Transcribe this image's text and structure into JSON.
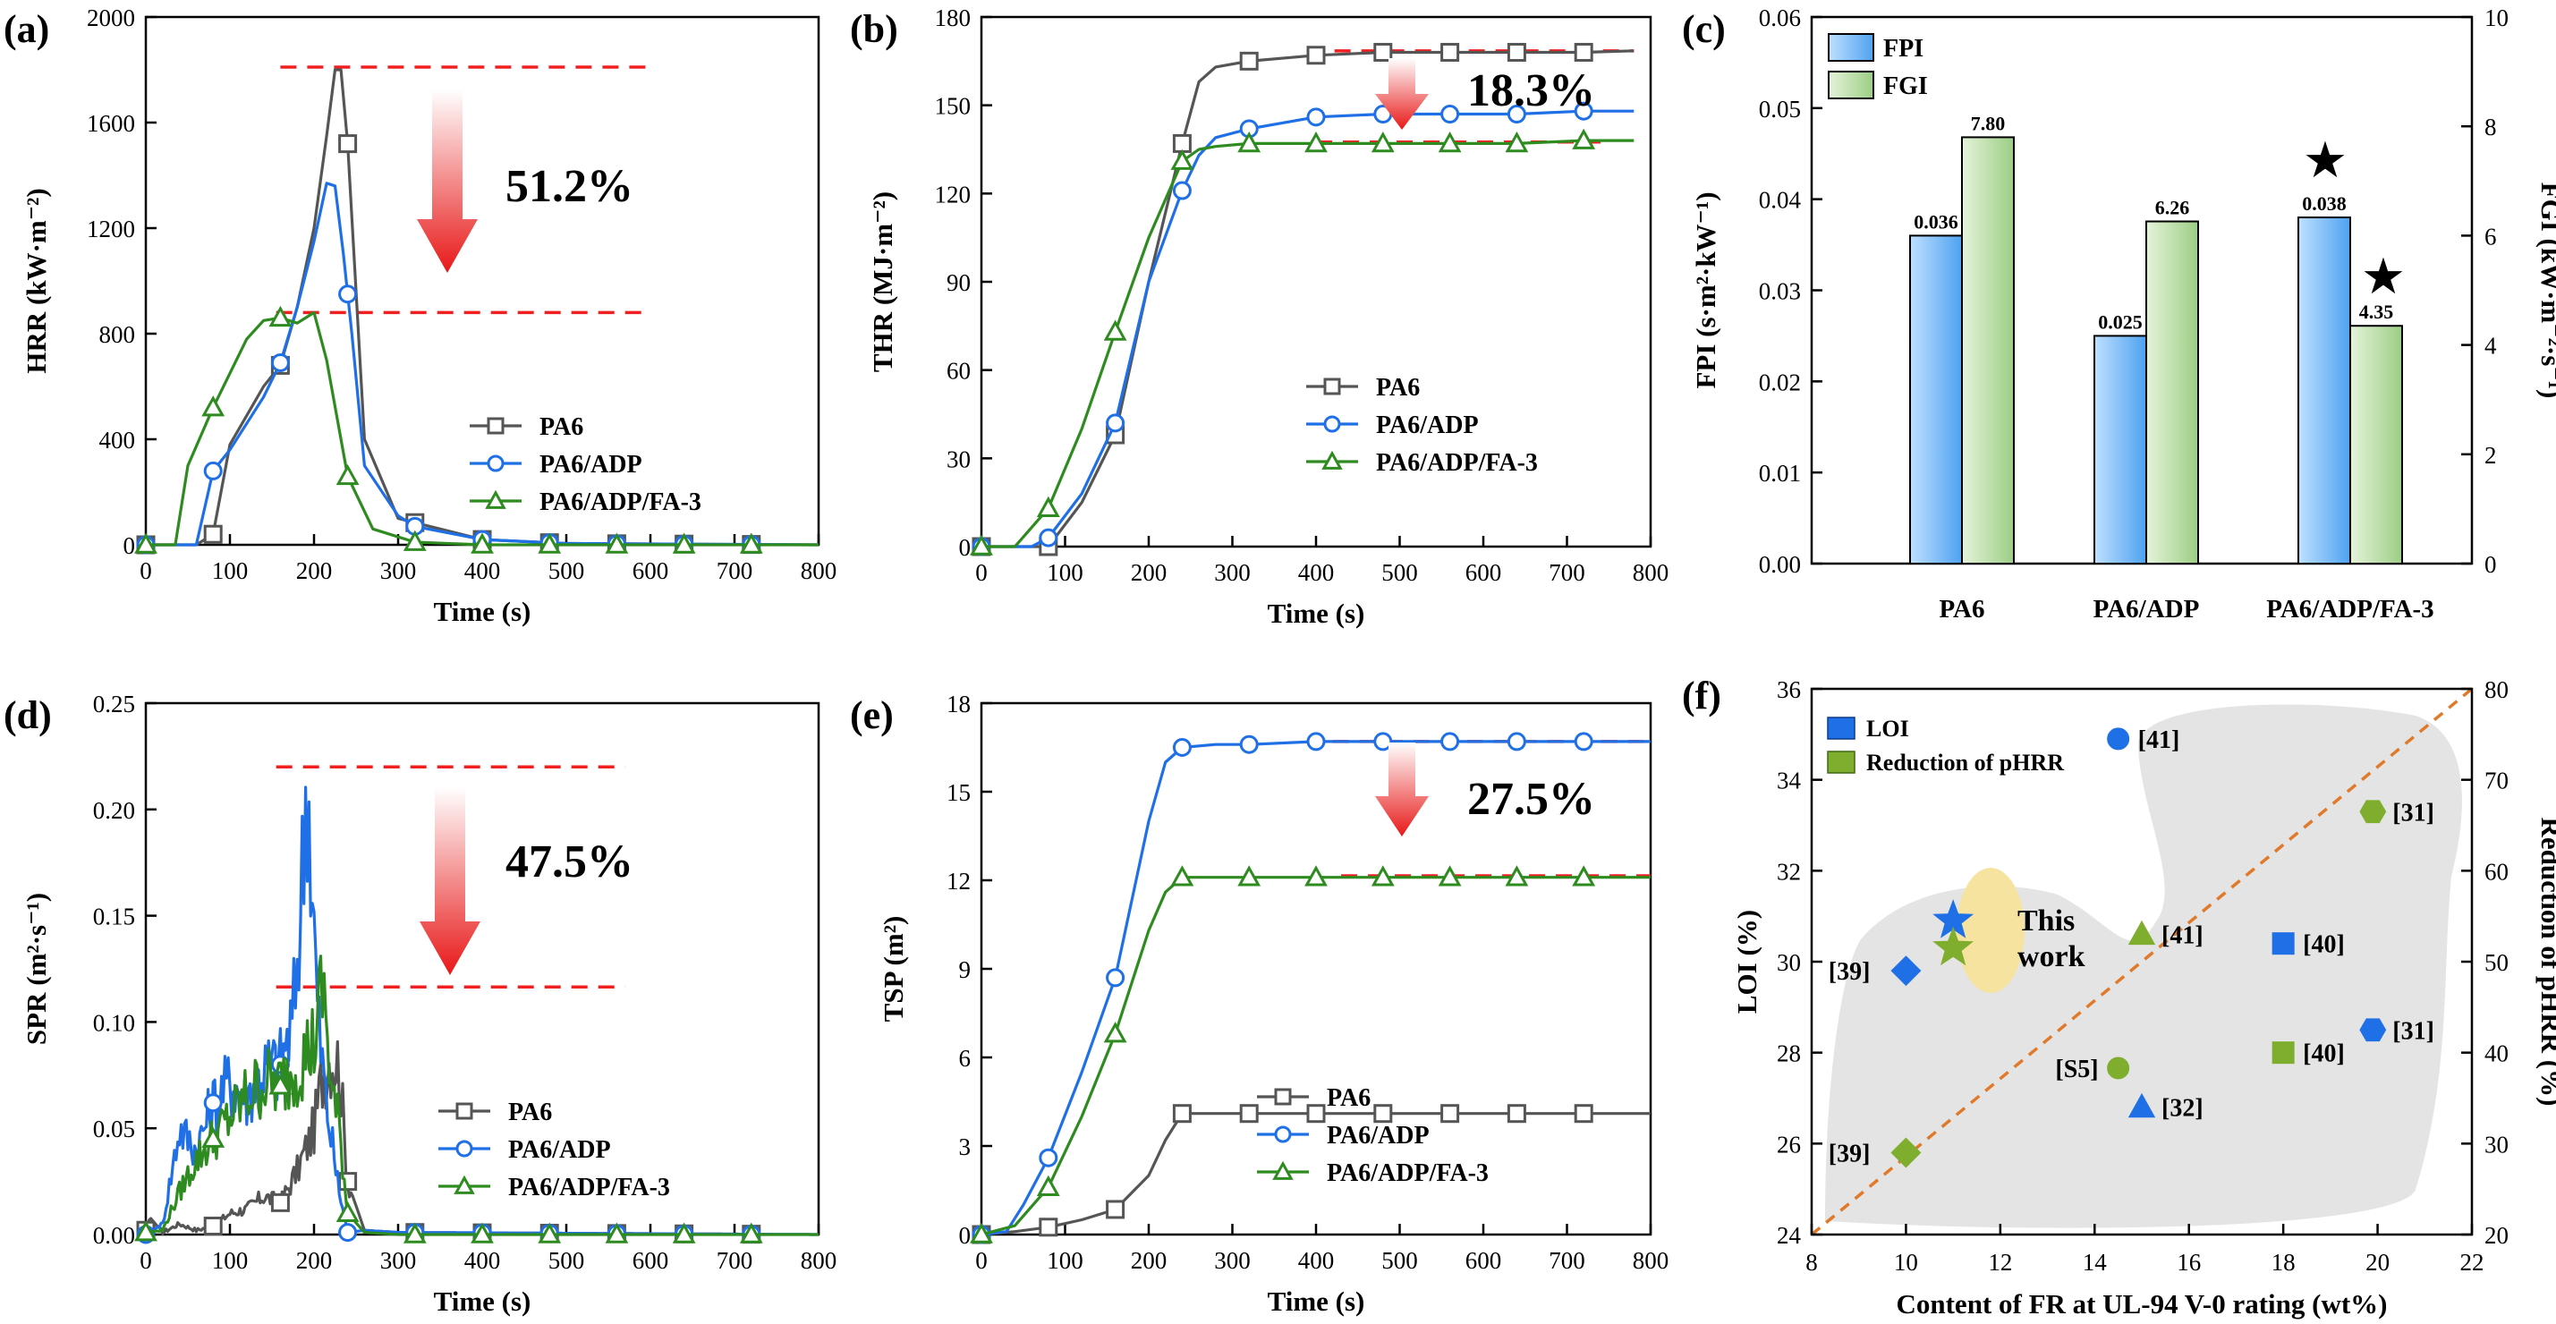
{
  "colors": {
    "pa6": "#555555",
    "adp": "#1f6fe6",
    "fa3": "#2e8b1f",
    "red": "#f02020",
    "fpi": "#4ea2f0",
    "fgi": "#9cce84",
    "orange": "#e07a2a",
    "bubble": "#e4e4e4",
    "highlight": "#f7e3a0"
  },
  "chart_data": [
    {
      "panel": "(a)",
      "type": "line",
      "xlabel": "Time (s)",
      "ylabel": "HRR (kW·m⁻²)",
      "xlim": [
        0,
        800
      ],
      "ylim": [
        0,
        2000
      ],
      "xticks": [
        0,
        100,
        200,
        300,
        400,
        500,
        600,
        700,
        800
      ],
      "yticks": [
        0,
        400,
        800,
        1200,
        1600,
        2000
      ],
      "annotation": "51.2%",
      "ref_lines": [
        1810,
        880
      ],
      "marker_x": [
        0,
        80,
        160,
        240,
        320,
        400,
        480,
        560,
        640,
        720
      ],
      "series": [
        {
          "name": "PA6",
          "marker": "square",
          "x": [
            0,
            60,
            80,
            100,
            140,
            160,
            180,
            200,
            215,
            225,
            232,
            240,
            260,
            300,
            400,
            500,
            800
          ],
          "y": [
            0,
            0,
            40,
            380,
            600,
            680,
            900,
            1200,
            1550,
            1800,
            1800,
            1520,
            400,
            100,
            20,
            5,
            0
          ]
        },
        {
          "name": "PA6/ADP",
          "marker": "circle",
          "x": [
            0,
            60,
            80,
            100,
            140,
            160,
            180,
            200,
            215,
            225,
            235,
            245,
            260,
            300,
            320,
            400,
            500,
            800
          ],
          "y": [
            0,
            0,
            280,
            360,
            560,
            690,
            900,
            1150,
            1370,
            1360,
            1100,
            800,
            300,
            110,
            70,
            20,
            5,
            0
          ]
        },
        {
          "name": "PA6/ADP/FA-3",
          "marker": "triangle",
          "x": [
            0,
            35,
            50,
            80,
            120,
            140,
            160,
            180,
            200,
            215,
            240,
            270,
            320,
            400,
            500,
            800
          ],
          "y": [
            0,
            0,
            300,
            520,
            780,
            850,
            860,
            840,
            880,
            700,
            260,
            60,
            10,
            0,
            0,
            0
          ]
        }
      ]
    },
    {
      "panel": "(b)",
      "type": "line",
      "xlabel": "Time (s)",
      "ylabel": "THR (MJ·m⁻²)",
      "xlim": [
        0,
        800
      ],
      "ylim": [
        0,
        180
      ],
      "xticks": [
        0,
        100,
        200,
        300,
        400,
        500,
        600,
        700,
        800
      ],
      "yticks": [
        0,
        30,
        60,
        90,
        120,
        150,
        180
      ],
      "annotation": "18.3%",
      "ref_lines": [
        168.5,
        137.5
      ],
      "marker_x": [
        0,
        80,
        160,
        240,
        320,
        400,
        480,
        560,
        640,
        720
      ],
      "series": [
        {
          "name": "PA6",
          "marker": "square",
          "x": [
            0,
            60,
            80,
            120,
            160,
            200,
            240,
            260,
            280,
            320,
            400,
            480,
            560,
            640,
            720,
            780
          ],
          "y": [
            0,
            0,
            0,
            15,
            38,
            90,
            137,
            158,
            163,
            165,
            167,
            168,
            168,
            168,
            168,
            168.5
          ]
        },
        {
          "name": "PA6/ADP",
          "marker": "circle",
          "x": [
            0,
            60,
            80,
            120,
            160,
            200,
            240,
            260,
            280,
            320,
            400,
            480,
            560,
            640,
            720,
            780
          ],
          "y": [
            0,
            0,
            3,
            18,
            42,
            90,
            121,
            133,
            139,
            142,
            146,
            147,
            147,
            147,
            148,
            148
          ]
        },
        {
          "name": "PA6/ADP/FA-3",
          "marker": "triangle",
          "x": [
            0,
            40,
            80,
            120,
            160,
            200,
            240,
            260,
            280,
            320,
            400,
            480,
            560,
            640,
            720,
            780
          ],
          "y": [
            0,
            0,
            13,
            40,
            73,
            105,
            131,
            135,
            136,
            137,
            137,
            137,
            137,
            137,
            138,
            138
          ]
        }
      ]
    },
    {
      "panel": "(c)",
      "type": "bar",
      "categories": [
        "PA6",
        "PA6/ADP",
        "PA6/ADP/FA-3"
      ],
      "ylabel": "FPI (s·m²·kW⁻¹)",
      "y2label": "FGI (kW·m⁻²·s⁻¹)",
      "ylim": [
        0,
        0.06
      ],
      "y2lim": [
        0,
        10
      ],
      "yticks": [
        "0.00",
        "0.01",
        "0.02",
        "0.03",
        "0.04",
        "0.05",
        "0.06"
      ],
      "y2ticks": [
        "0",
        "2",
        "4",
        "6",
        "8",
        "10"
      ],
      "series": [
        {
          "name": "FPI",
          "axis": "left",
          "values": [
            0.036,
            0.025,
            0.038
          ],
          "labels": [
            "0.036",
            "0.025",
            "0.038"
          ]
        },
        {
          "name": "FGI",
          "axis": "right",
          "values": [
            7.8,
            6.26,
            4.35
          ],
          "labels": [
            "7.80",
            "6.26",
            "4.35"
          ]
        }
      ],
      "stars": "★"
    },
    {
      "panel": "(d)",
      "type": "line",
      "xlabel": "Time (s)",
      "ylabel": "SPR (m²·s⁻¹)",
      "xlim": [
        0,
        800
      ],
      "ylim": [
        0,
        0.25
      ],
      "xticks": [
        0,
        100,
        200,
        300,
        400,
        500,
        600,
        700,
        800
      ],
      "yticks": [
        "0.00",
        "0.05",
        "0.10",
        "0.15",
        "0.20",
        "0.25"
      ],
      "annotation": "47.5%",
      "ref_lines": [
        0.22,
        0.1165
      ],
      "marker_x": [
        0,
        80,
        160,
        240,
        320,
        400,
        480,
        560,
        640,
        720
      ],
      "series": [
        {
          "name": "PA6",
          "marker": "square",
          "x": [
            0,
            5,
            20,
            40,
            60,
            80,
            100,
            120,
            140,
            160,
            180,
            200,
            210,
            220,
            230,
            240,
            260,
            300,
            800
          ],
          "y": [
            0.002,
            0.008,
            0.001,
            0.005,
            0.002,
            0.004,
            0.01,
            0.012,
            0.018,
            0.015,
            0.03,
            0.05,
            0.075,
            0.085,
            0.08,
            0.025,
            0.002,
            0.001,
            0
          ]
        },
        {
          "name": "PA6/ADP",
          "marker": "circle",
          "x": [
            0,
            20,
            40,
            60,
            80,
            100,
            120,
            140,
            160,
            175,
            185,
            192,
            197,
            205,
            215,
            230,
            240,
            260,
            300,
            800
          ],
          "y": [
            0,
            0.005,
            0.05,
            0.04,
            0.062,
            0.072,
            0.065,
            0.078,
            0.08,
            0.1,
            0.16,
            0.22,
            0.17,
            0.1,
            0.06,
            0.02,
            0.001,
            0.002,
            0.001,
            0
          ]
        },
        {
          "name": "PA6/ADP/FA-3",
          "marker": "triangle",
          "x": [
            0,
            20,
            40,
            60,
            80,
            100,
            120,
            140,
            160,
            180,
            200,
            210,
            215,
            220,
            230,
            240,
            260,
            300,
            800
          ],
          "y": [
            0.001,
            0.002,
            0.02,
            0.035,
            0.045,
            0.055,
            0.065,
            0.072,
            0.07,
            0.08,
            0.09,
            0.115,
            0.1,
            0.07,
            0.05,
            0.01,
            0.001,
            0.0,
            0
          ]
        }
      ]
    },
    {
      "panel": "(e)",
      "type": "line",
      "xlabel": "Time (s)",
      "ylabel": "TSP (m²)",
      "xlim": [
        0,
        800
      ],
      "ylim": [
        0,
        18
      ],
      "xticks": [
        0,
        100,
        200,
        300,
        400,
        500,
        600,
        700,
        800
      ],
      "yticks": [
        0,
        3,
        6,
        9,
        12,
        15,
        18
      ],
      "annotation": "27.5%",
      "ref_lines": [
        16.7,
        12.15
      ],
      "marker_x": [
        0,
        80,
        160,
        240,
        320,
        400,
        480,
        560,
        640,
        720
      ],
      "series": [
        {
          "name": "PA6",
          "marker": "square",
          "x": [
            0,
            40,
            80,
            120,
            160,
            200,
            220,
            240,
            280,
            320,
            400,
            480,
            560,
            640,
            720,
            800
          ],
          "y": [
            0,
            0.1,
            0.25,
            0.5,
            0.85,
            2.0,
            3.2,
            4.1,
            4.1,
            4.1,
            4.1,
            4.1,
            4.1,
            4.1,
            4.1,
            4.1
          ]
        },
        {
          "name": "PA6/ADP",
          "marker": "circle",
          "x": [
            0,
            30,
            50,
            80,
            120,
            160,
            200,
            220,
            240,
            280,
            320,
            400,
            480,
            560,
            640,
            720,
            800
          ],
          "y": [
            0,
            0.1,
            1.0,
            2.6,
            5.5,
            8.7,
            14.0,
            16.0,
            16.5,
            16.6,
            16.6,
            16.7,
            16.7,
            16.7,
            16.7,
            16.7,
            16.7
          ]
        },
        {
          "name": "PA6/ADP/FA-3",
          "marker": "triangle",
          "x": [
            0,
            40,
            80,
            120,
            160,
            200,
            220,
            240,
            280,
            320,
            400,
            480,
            560,
            640,
            720,
            800
          ],
          "y": [
            0,
            0.3,
            1.6,
            4.0,
            6.8,
            10.3,
            11.6,
            12.1,
            12.1,
            12.1,
            12.1,
            12.1,
            12.1,
            12.1,
            12.1,
            12.1
          ]
        }
      ]
    },
    {
      "panel": "(f)",
      "type": "scatter",
      "xlabel": "Content of FR at UL-94 V-0 rating (wt%)",
      "ylabel": "LOI (%)",
      "y2label": "Reduction of pHRR (%)",
      "xlim": [
        8,
        22
      ],
      "ylim": [
        24,
        36
      ],
      "y2lim": [
        20,
        80
      ],
      "xticks": [
        8,
        10,
        12,
        14,
        16,
        18,
        20,
        22
      ],
      "yticks": [
        24,
        26,
        28,
        30,
        32,
        34,
        36
      ],
      "y2ticks": [
        20,
        30,
        40,
        50,
        60,
        70,
        80
      ],
      "legend": [
        "LOI",
        "Reduction of pHRR"
      ],
      "this_work": [
        "This",
        "work"
      ],
      "loi_points": [
        {
          "x": 10.0,
          "y": 29.8,
          "shape": "diamond",
          "label": "[39]"
        },
        {
          "x": 11.0,
          "y": 30.9,
          "shape": "star",
          "label": ""
        },
        {
          "x": 14.5,
          "y": 34.9,
          "shape": "circle",
          "label": "[41]"
        },
        {
          "x": 15.0,
          "y": 26.8,
          "shape": "triangle",
          "label": "[32]"
        },
        {
          "x": 18.0,
          "y": 30.4,
          "shape": "square",
          "label": "[40]"
        },
        {
          "x": 19.9,
          "y": 28.5,
          "shape": "hexagon",
          "label": "[31]"
        }
      ],
      "phrr_points": [
        {
          "x": 10.0,
          "y2": 29.0,
          "shape": "diamond",
          "label": "[39]"
        },
        {
          "x": 11.0,
          "y2": 51.5,
          "shape": "star",
          "label": ""
        },
        {
          "x": 14.5,
          "y2": 38.3,
          "shape": "circle",
          "label": "[S5]"
        },
        {
          "x": 15.0,
          "y2": 53.0,
          "shape": "triangle",
          "label": "[41]"
        },
        {
          "x": 18.0,
          "y2": 40.0,
          "shape": "square",
          "label": "[40]"
        },
        {
          "x": 19.9,
          "y2": 66.5,
          "shape": "hexagon",
          "label": "[31]"
        }
      ]
    }
  ]
}
